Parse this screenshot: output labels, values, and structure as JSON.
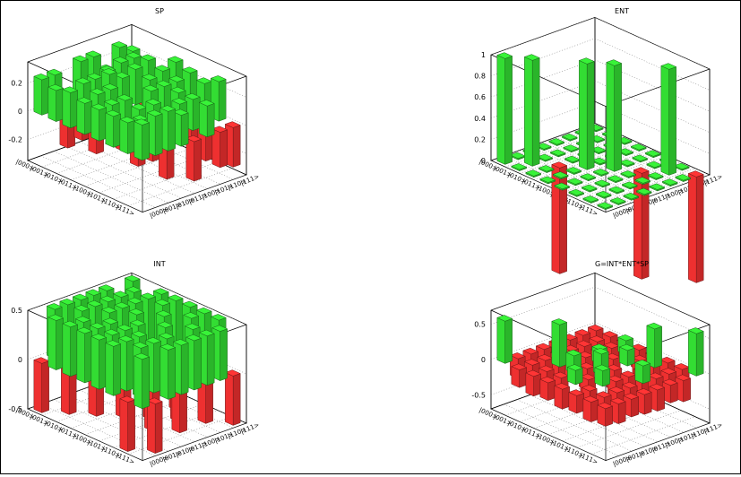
{
  "basis": [
    "|000>",
    "|001>",
    "|010>",
    "|011>",
    "|100>",
    "|101>",
    "|110>",
    "|111>"
  ],
  "colors": {
    "positive": "#33dd33",
    "negative": "#ee3030"
  },
  "chart_data": [
    {
      "type": "bar3d",
      "title": "SP",
      "zlim": [
        -0.35,
        0.35
      ],
      "zticks": [
        "0.2",
        "0",
        "-0.2"
      ],
      "zticks_values": [
        0.2,
        0,
        -0.2
      ],
      "values": [
        [
          0.25,
          0.25,
          -0.3,
          0.28,
          0.28,
          0.15,
          0.28,
          0.22
        ],
        [
          0.22,
          0.12,
          -0.2,
          0.2,
          0.22,
          0.25,
          0.25,
          -0.28
        ],
        [
          0.25,
          0.28,
          -0.25,
          0.28,
          0.22,
          0.25,
          0.28,
          -0.25
        ],
        [
          0.22,
          0.25,
          0.25,
          -0.22,
          -0.25,
          0.22,
          0.25,
          0.28
        ],
        [
          0.22,
          0.22,
          0.22,
          -0.28,
          0.22,
          0.22,
          0.22,
          0.25
        ],
        [
          0.22,
          0.12,
          0.2,
          -0.2,
          -0.22,
          0.22,
          -0.15,
          0.22
        ],
        [
          0.22,
          0.2,
          0.28,
          -0.28,
          0.22,
          0.22,
          -0.25,
          0.28
        ],
        [
          0.25,
          0.28,
          0.28,
          0.22,
          -0.28,
          0.22,
          -0.25,
          -0.28
        ]
      ]
    },
    {
      "type": "bar3d",
      "title": "ENT",
      "zlim": [
        0,
        1
      ],
      "zticks": [
        "1",
        "0.8",
        "0.6",
        "0.4",
        "0.2",
        "0"
      ],
      "zticks_values": [
        1,
        0.8,
        0.6,
        0.4,
        0.2,
        0
      ],
      "values": [
        [
          1,
          0,
          0,
          0,
          0,
          0,
          0,
          0
        ],
        [
          0,
          1,
          0,
          0,
          0,
          0,
          0,
          0
        ],
        [
          0,
          0,
          -1,
          0,
          0,
          0,
          0,
          0
        ],
        [
          0,
          0,
          0,
          1,
          0,
          0,
          0,
          0
        ],
        [
          0,
          0,
          0,
          0,
          1,
          0,
          0,
          0
        ],
        [
          0,
          0,
          0,
          0,
          0,
          -1,
          0,
          0
        ],
        [
          0,
          0,
          0,
          0,
          0,
          0,
          1,
          0
        ],
        [
          0,
          0,
          0,
          0,
          0,
          0,
          0,
          -1
        ]
      ]
    },
    {
      "type": "bar3d",
      "title": "INT",
      "zlim": [
        -0.5,
        0.5
      ],
      "zticks": [
        "0.5",
        "0",
        "-0.5"
      ],
      "zticks_values": [
        0.5,
        0,
        -0.5
      ],
      "values": [
        [
          -0.5,
          0.5,
          0.5,
          0.5,
          0.5,
          0.5,
          -0.5,
          0.5
        ],
        [
          0.5,
          -0.5,
          0.5,
          0.5,
          0.5,
          0.5,
          0.5,
          -0.5
        ],
        [
          0.5,
          0.5,
          -0.5,
          0.5,
          0.5,
          0.5,
          0.5,
          0.5
        ],
        [
          0.5,
          0.5,
          0.5,
          -0.5,
          0.5,
          -0.5,
          0.5,
          0.5
        ],
        [
          0.5,
          0.5,
          0.5,
          0.5,
          -0.5,
          0.5,
          -0.5,
          0.5
        ],
        [
          0.5,
          0.5,
          0.5,
          -0.5,
          0.5,
          -0.5,
          0.5,
          0.5
        ],
        [
          -0.5,
          0.5,
          0.5,
          0.5,
          -0.5,
          0.5,
          -0.5,
          0.5
        ],
        [
          0.5,
          -0.5,
          0.5,
          0.5,
          0.5,
          0.5,
          0.5,
          -0.5
        ]
      ]
    },
    {
      "type": "bar3d",
      "title": "G=INT*ENT*SP",
      "zlim": [
        -0.7,
        0.7
      ],
      "zticks": [
        "0.5",
        "0",
        "-0.5"
      ],
      "zticks_values": [
        0.5,
        0,
        -0.5
      ],
      "values": [
        [
          0.6,
          -0.28,
          -0.3,
          -0.25,
          -0.3,
          -0.28,
          -0.28,
          -0.25
        ],
        [
          -0.25,
          -0.22,
          -0.25,
          -0.28,
          -0.25,
          -0.22,
          -0.28,
          -0.22
        ],
        [
          -0.28,
          -0.25,
          0.6,
          -0.25,
          -0.28,
          -0.28,
          -0.25,
          -0.28
        ],
        [
          -0.25,
          -0.28,
          0.25,
          -0.3,
          0.2,
          -0.25,
          0.2,
          -0.28
        ],
        [
          -0.28,
          0.2,
          -0.25,
          0.3,
          -0.28,
          0.22,
          -0.28,
          -0.3
        ],
        [
          -0.25,
          -0.28,
          0.22,
          -0.3,
          -0.25,
          -0.28,
          0.55,
          -0.28
        ],
        [
          -0.28,
          -0.25,
          -0.3,
          -0.25,
          0.25,
          -0.22,
          -0.25,
          -0.3
        ],
        [
          -0.25,
          -0.28,
          -0.25,
          -0.28,
          -0.3,
          -0.25,
          -0.3,
          0.6
        ]
      ]
    }
  ]
}
